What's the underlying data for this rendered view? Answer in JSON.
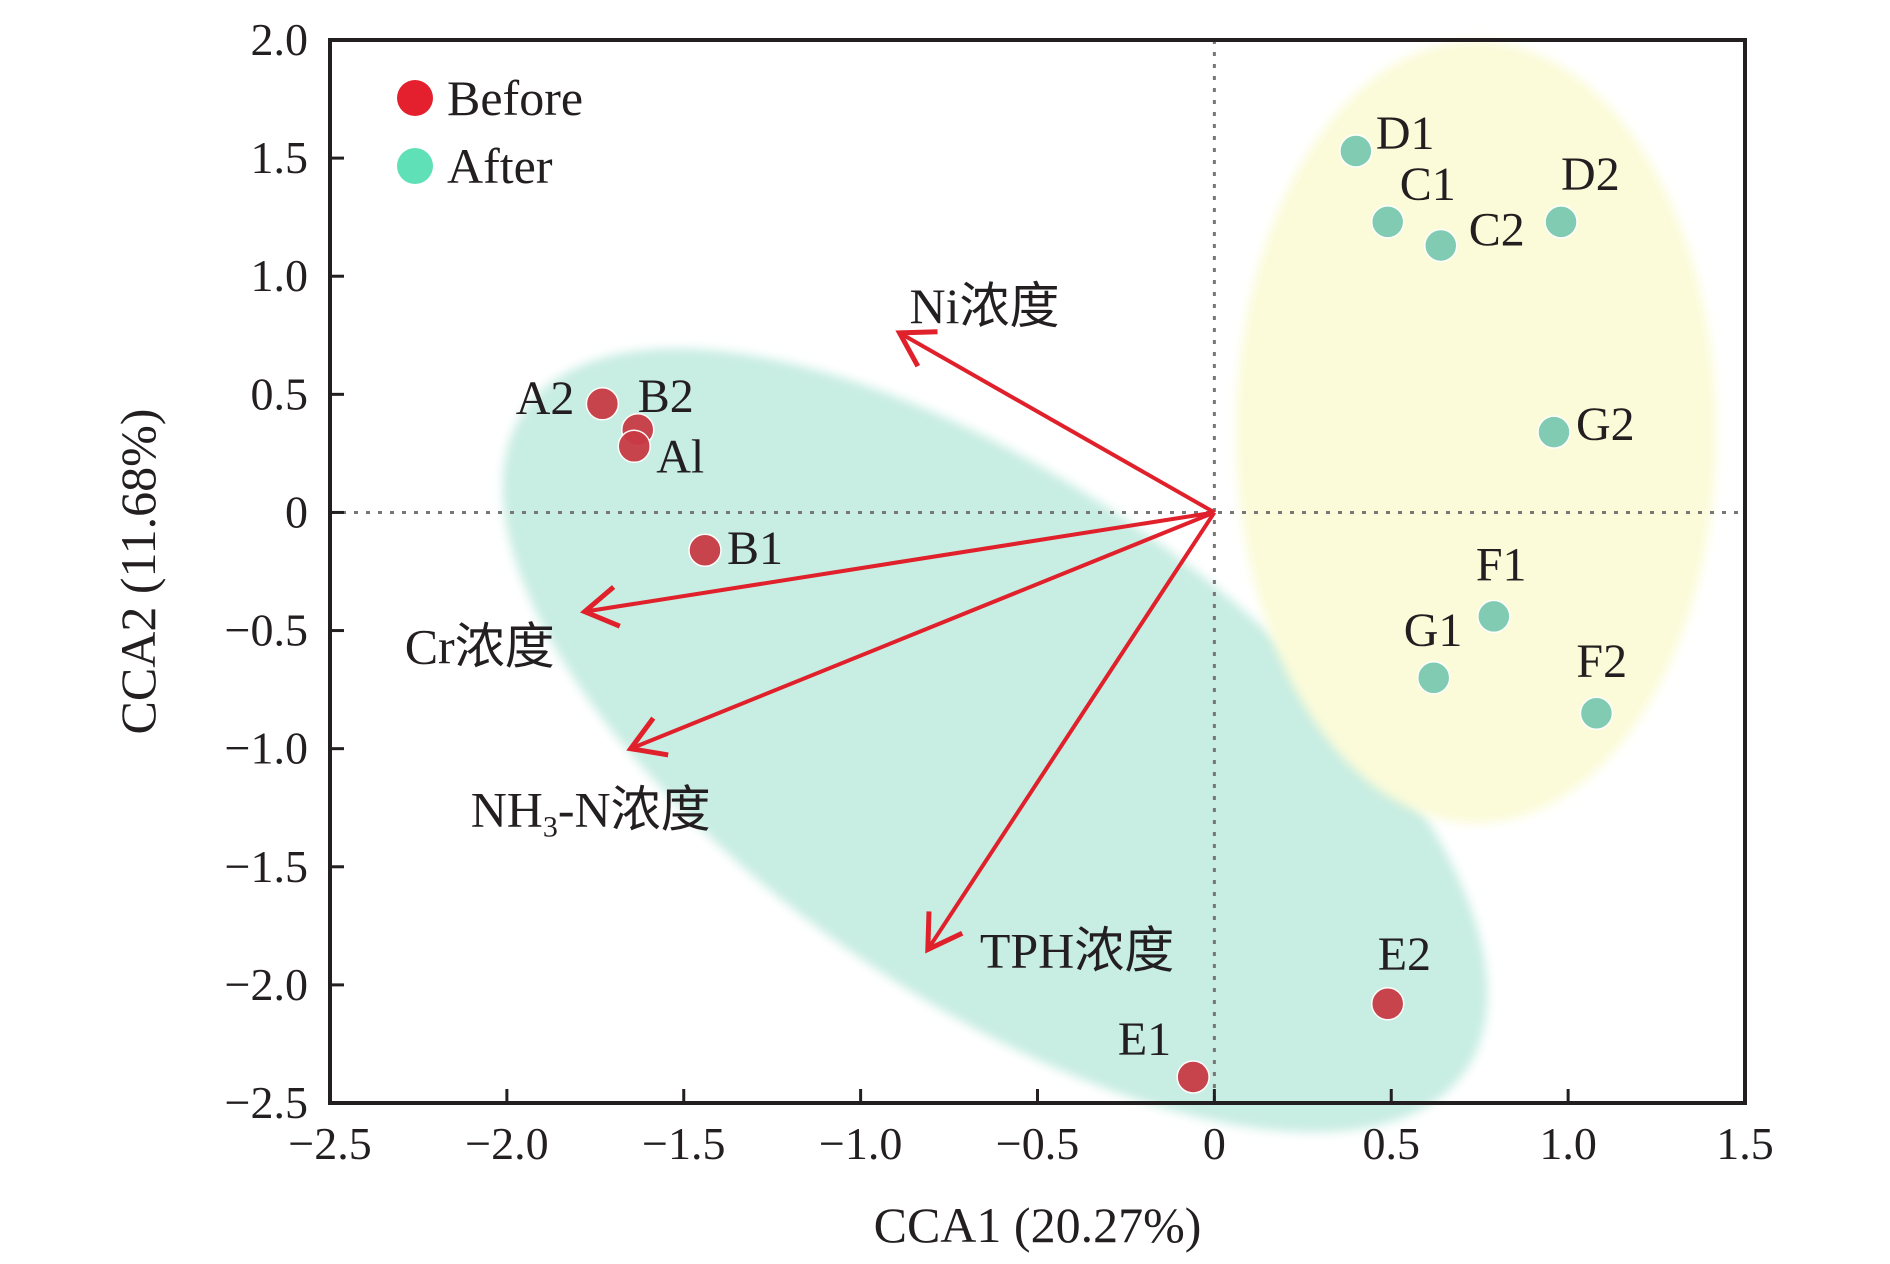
{
  "chart_data": {
    "type": "scatter",
    "xlabel": "CCA1 (20.27%)",
    "ylabel": "CCA2 (11.68%)",
    "xlim": [
      -2.5,
      1.5
    ],
    "ylim": [
      -2.5,
      2.0
    ],
    "xticks": [
      -2.5,
      -2.0,
      -1.5,
      -1.0,
      -0.5,
      0,
      0.5,
      1.0,
      1.5
    ],
    "xtick_labels": [
      "−2.5",
      "−2.0",
      "−1.5",
      "−1.0",
      "−0.5",
      "0",
      "0.5",
      "1.0",
      "1.5"
    ],
    "yticks": [
      2.0,
      1.5,
      1.0,
      0.5,
      0,
      -0.5,
      -1.0,
      -1.5,
      -2.0,
      -2.5
    ],
    "ytick_labels": [
      "2.0",
      "1.5",
      "1.0",
      "0.5",
      "0",
      "−0.5",
      "−1.0",
      "−1.5",
      "−2.0",
      "−2.5"
    ],
    "grid": false,
    "zero_lines": true,
    "legend_position": "top-left",
    "series": [
      {
        "name": "Before",
        "color": "#d9232e",
        "points": [
          {
            "label": "A2",
            "x": -1.73,
            "y": 0.46
          },
          {
            "label": "B2",
            "x": -1.63,
            "y": 0.35
          },
          {
            "label": "Al",
            "x": -1.64,
            "y": 0.28
          },
          {
            "label": "B1",
            "x": -1.44,
            "y": -0.16
          },
          {
            "label": "E1",
            "x": -0.06,
            "y": -2.39
          },
          {
            "label": "E2",
            "x": 0.49,
            "y": -2.08
          }
        ]
      },
      {
        "name": "After",
        "color": "#5fd6b0",
        "points": [
          {
            "label": "D1",
            "x": 0.4,
            "y": 1.53
          },
          {
            "label": "C1",
            "x": 0.49,
            "y": 1.23
          },
          {
            "label": "C2",
            "x": 0.64,
            "y": 1.13
          },
          {
            "label": "D2",
            "x": 0.98,
            "y": 1.23
          },
          {
            "label": "G2",
            "x": 0.96,
            "y": 0.34
          },
          {
            "label": "F1",
            "x": 0.79,
            "y": -0.44
          },
          {
            "label": "G1",
            "x": 0.62,
            "y": -0.7
          },
          {
            "label": "F2",
            "x": 1.08,
            "y": -0.85
          }
        ]
      }
    ],
    "vectors": [
      {
        "label_parts": [
          "Ni浓度"
        ],
        "x": -0.89,
        "y": 0.76
      },
      {
        "label_parts": [
          "Cr浓度"
        ],
        "x": -1.78,
        "y": -0.42
      },
      {
        "label_parts": [
          "NH",
          "3",
          "-N浓度"
        ],
        "x": -1.65,
        "y": -1.0
      },
      {
        "label_parts": [
          "TPH浓度"
        ],
        "x": -0.81,
        "y": -1.85
      }
    ],
    "vector_color": "#e0202a",
    "hull_colors": {
      "before": "#c8ede2",
      "after": "#fbfbd9"
    }
  }
}
